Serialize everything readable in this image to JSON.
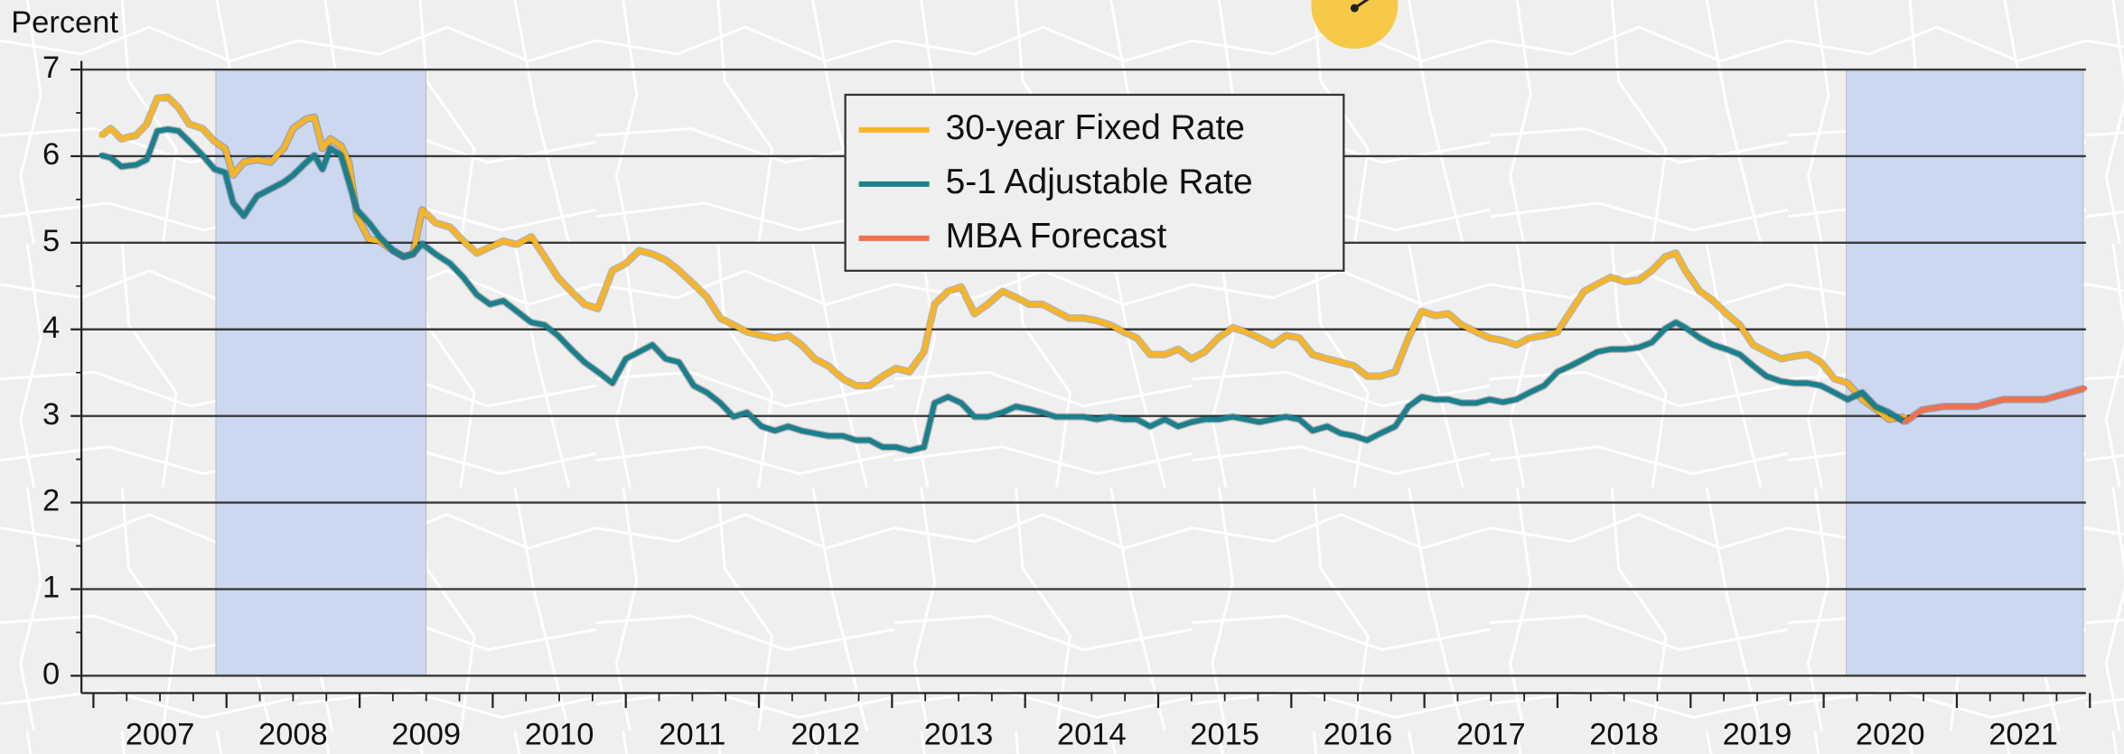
{
  "chart_data": {
    "type": "line",
    "y_label": "Percent",
    "ylim": [
      -0.2,
      7.1
    ],
    "yticks": [
      0,
      1,
      2,
      3,
      4,
      5,
      6,
      7
    ],
    "xlim": [
      2006.91,
      2021.97
    ],
    "xticks": [
      {
        "value": 2007.5,
        "label": "2007"
      },
      {
        "value": 2008.5,
        "label": "2008"
      },
      {
        "value": 2009.5,
        "label": "2009"
      },
      {
        "value": 2010.5,
        "label": "2010"
      },
      {
        "value": 2011.5,
        "label": "2011"
      },
      {
        "value": 2012.5,
        "label": "2012"
      },
      {
        "value": 2013.5,
        "label": "2013"
      },
      {
        "value": 2014.5,
        "label": "2014"
      },
      {
        "value": 2015.5,
        "label": "2015"
      },
      {
        "value": 2016.5,
        "label": "2016"
      },
      {
        "value": 2017.5,
        "label": "2017"
      },
      {
        "value": 2018.5,
        "label": "2018"
      },
      {
        "value": 2019.5,
        "label": "2019"
      },
      {
        "value": 2020.5,
        "label": "2020"
      },
      {
        "value": 2021.5,
        "label": "2021"
      }
    ],
    "grid": true,
    "legend": "upper center",
    "shaded_regions": [
      [
        2007.92,
        2009.5
      ],
      [
        2020.17,
        2021.95
      ]
    ],
    "shade_color": "#cbd8f0",
    "x": [
      2007.06,
      2007.13,
      2007.21,
      2007.32,
      2007.4,
      2007.48,
      2007.56,
      2007.64,
      2007.72,
      2007.82,
      2007.91,
      2007.99,
      2008.05,
      2008.13,
      2008.23,
      2008.33,
      2008.43,
      2008.5,
      2008.6,
      2008.66,
      2008.72,
      2008.78,
      2008.86,
      2008.92,
      2008.98,
      2009.07,
      2009.15,
      2009.25,
      2009.33,
      2009.4,
      2009.47,
      2009.57,
      2009.68,
      2009.78,
      2009.88,
      2009.98,
      2010.08,
      2010.18,
      2010.29,
      2010.39,
      2010.49,
      2010.59,
      2010.69,
      2010.79,
      2010.9,
      2011.0,
      2011.1,
      2011.2,
      2011.3,
      2011.4,
      2011.51,
      2011.61,
      2011.71,
      2011.81,
      2011.91,
      2012.02,
      2012.12,
      2012.22,
      2012.32,
      2012.42,
      2012.52,
      2012.63,
      2012.73,
      2012.83,
      2012.93,
      2013.03,
      2013.13,
      2013.24,
      2013.32,
      2013.42,
      2013.52,
      2013.62,
      2013.72,
      2013.83,
      2013.93,
      2014.03,
      2014.13,
      2014.23,
      2014.33,
      2014.44,
      2014.54,
      2014.64,
      2014.74,
      2014.84,
      2014.94,
      2015.05,
      2015.15,
      2015.25,
      2015.35,
      2015.45,
      2015.56,
      2015.66,
      2015.76,
      2015.86,
      2015.96,
      2016.06,
      2016.16,
      2016.27,
      2016.37,
      2016.47,
      2016.57,
      2016.67,
      2016.78,
      2016.88,
      2016.98,
      2017.08,
      2017.18,
      2017.28,
      2017.39,
      2017.49,
      2017.59,
      2017.69,
      2017.79,
      2017.9,
      2018.0,
      2018.1,
      2018.2,
      2018.3,
      2018.4,
      2018.51,
      2018.61,
      2018.71,
      2018.81,
      2018.89,
      2018.96,
      2019.07,
      2019.17,
      2019.27,
      2019.37,
      2019.47,
      2019.57,
      2019.68,
      2019.78,
      2019.88,
      2019.98,
      2020.08,
      2020.18,
      2020.29,
      2020.39,
      2020.49,
      2020.61
    ],
    "series": [
      {
        "name": "30-year Fixed Rate",
        "color": "#f5b52a",
        "values": [
          6.24,
          6.32,
          6.2,
          6.24,
          6.37,
          6.67,
          6.68,
          6.56,
          6.37,
          6.32,
          6.17,
          6.09,
          5.78,
          5.93,
          5.96,
          5.93,
          6.09,
          6.32,
          6.43,
          6.45,
          6.09,
          6.2,
          6.12,
          5.93,
          5.31,
          5.04,
          5.02,
          4.91,
          4.84,
          4.87,
          5.38,
          5.23,
          5.18,
          5.02,
          4.88,
          4.95,
          5.02,
          4.98,
          5.07,
          4.84,
          4.6,
          4.44,
          4.29,
          4.24,
          4.68,
          4.76,
          4.91,
          4.87,
          4.8,
          4.68,
          4.52,
          4.37,
          4.13,
          4.05,
          3.97,
          3.93,
          3.9,
          3.93,
          3.82,
          3.66,
          3.58,
          3.43,
          3.35,
          3.35,
          3.46,
          3.55,
          3.51,
          3.74,
          4.29,
          4.44,
          4.49,
          4.18,
          4.29,
          4.44,
          4.37,
          4.29,
          4.29,
          4.21,
          4.13,
          4.13,
          4.1,
          4.05,
          3.97,
          3.9,
          3.71,
          3.71,
          3.77,
          3.66,
          3.74,
          3.9,
          4.02,
          3.97,
          3.9,
          3.82,
          3.93,
          3.9,
          3.71,
          3.66,
          3.62,
          3.58,
          3.46,
          3.46,
          3.51,
          3.9,
          4.21,
          4.16,
          4.18,
          4.05,
          3.97,
          3.9,
          3.87,
          3.82,
          3.9,
          3.93,
          3.97,
          4.21,
          4.44,
          4.52,
          4.6,
          4.55,
          4.57,
          4.68,
          4.84,
          4.88,
          4.68,
          4.44,
          4.33,
          4.18,
          4.05,
          3.82,
          3.74,
          3.66,
          3.69,
          3.71,
          3.62,
          3.43,
          3.38,
          3.19,
          3.08,
          2.96,
          2.99
        ]
      },
      {
        "name": "5-1 Adjustable Rate",
        "color": "#1b7f8c",
        "values": [
          6.01,
          5.98,
          5.88,
          5.9,
          5.96,
          6.29,
          6.31,
          6.29,
          6.17,
          6.01,
          5.85,
          5.81,
          5.46,
          5.31,
          5.54,
          5.62,
          5.7,
          5.78,
          5.93,
          6.01,
          5.85,
          6.09,
          6.01,
          5.7,
          5.38,
          5.23,
          5.07,
          4.91,
          4.84,
          4.87,
          4.99,
          4.87,
          4.76,
          4.6,
          4.4,
          4.29,
          4.33,
          4.21,
          4.08,
          4.05,
          3.93,
          3.77,
          3.62,
          3.51,
          3.38,
          3.66,
          3.74,
          3.82,
          3.66,
          3.62,
          3.35,
          3.27,
          3.15,
          2.99,
          3.04,
          2.88,
          2.83,
          2.88,
          2.83,
          2.8,
          2.77,
          2.77,
          2.72,
          2.72,
          2.64,
          2.64,
          2.6,
          2.64,
          3.15,
          3.22,
          3.15,
          2.99,
          2.99,
          3.04,
          3.11,
          3.08,
          3.04,
          2.99,
          2.99,
          2.99,
          2.96,
          2.99,
          2.96,
          2.96,
          2.88,
          2.96,
          2.88,
          2.93,
          2.96,
          2.96,
          2.99,
          2.96,
          2.93,
          2.96,
          2.99,
          2.96,
          2.83,
          2.88,
          2.8,
          2.77,
          2.72,
          2.8,
          2.88,
          3.11,
          3.22,
          3.19,
          3.19,
          3.15,
          3.15,
          3.19,
          3.16,
          3.19,
          3.27,
          3.35,
          3.51,
          3.58,
          3.66,
          3.74,
          3.77,
          3.77,
          3.79,
          3.85,
          4.01,
          4.08,
          4.02,
          3.9,
          3.82,
          3.77,
          3.71,
          3.58,
          3.46,
          3.4,
          3.38,
          3.38,
          3.35,
          3.27,
          3.19,
          3.27,
          3.11,
          3.04,
          2.93
        ]
      },
      {
        "name": "MBA Forecast",
        "color": "#ef7150",
        "x": [
          2020.61,
          2020.74,
          2020.9,
          2021.15,
          2021.35,
          2021.66,
          2021.96
        ],
        "values": [
          2.93,
          3.07,
          3.11,
          3.11,
          3.19,
          3.19,
          3.32
        ]
      }
    ]
  }
}
